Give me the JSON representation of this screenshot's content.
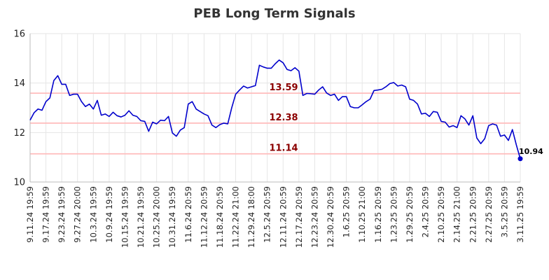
{
  "chart_data": {
    "type": "line",
    "title": "PEB Long Term Signals",
    "xlabel": "",
    "ylabel": "",
    "ylim": [
      10,
      16
    ],
    "yticks": [
      10,
      12,
      14,
      16
    ],
    "grid": true,
    "legend": "none",
    "x_tick_labels": [
      "9.11.24 19:59",
      "9.17.24 19:59",
      "9.23.24 19:59",
      "9.27.24 20:00",
      "10.3.24 19:59",
      "10.9.24 19:59",
      "10.15.24 19:59",
      "10.21.24 19:59",
      "10.25.24 20:00",
      "10.31.24 19:59",
      "11.6.24 20:59",
      "11.12.24 20:59",
      "11.18.24 20:59",
      "11.22.24 21:00",
      "11.29.24 18:00",
      "12.5.24 20:59",
      "12.11.24 20:59",
      "12.17.24 20:59",
      "12.23.24 20:59",
      "12.30.24 20:59",
      "1.6.25 20:59",
      "1.10.25 21:00",
      "1.16.25 20:59",
      "1.23.25 20:59",
      "1.29.25 20:59",
      "2.4.25 20:59",
      "2.10.25 20:59",
      "2.14.25 21:00",
      "2.21.25 20:59",
      "2.27.25 20:59",
      "3.5.25 20:59",
      "3.11.25 19:59"
    ],
    "series": [
      {
        "color": "#0000cc",
        "values": [
          12.5,
          12.8,
          12.95,
          12.9,
          13.25,
          13.4,
          14.1,
          14.3,
          13.95,
          13.95,
          13.5,
          13.55,
          13.55,
          13.25,
          13.05,
          13.15,
          12.95,
          13.3,
          12.7,
          12.75,
          12.65,
          12.82,
          12.68,
          12.63,
          12.7,
          12.88,
          12.7,
          12.65,
          12.48,
          12.45,
          12.05,
          12.42,
          12.35,
          12.5,
          12.48,
          12.65,
          11.98,
          11.85,
          12.1,
          12.2,
          13.15,
          13.25,
          12.95,
          12.85,
          12.75,
          12.68,
          12.3,
          12.2,
          12.32,
          12.38,
          12.35,
          13.0,
          13.55,
          13.72,
          13.88,
          13.8,
          13.85,
          13.9,
          14.72,
          14.65,
          14.6,
          14.6,
          14.78,
          14.93,
          14.82,
          14.55,
          14.5,
          14.62,
          14.48,
          13.5,
          13.58,
          13.57,
          13.55,
          13.72,
          13.85,
          13.6,
          13.5,
          13.55,
          13.3,
          13.45,
          13.45,
          13.05,
          13.0,
          13.0,
          13.12,
          13.25,
          13.35,
          13.7,
          13.72,
          13.75,
          13.85,
          13.98,
          14.02,
          13.88,
          13.92,
          13.85,
          13.35,
          13.3,
          13.15,
          12.75,
          12.78,
          12.65,
          12.85,
          12.82,
          12.45,
          12.42,
          12.22,
          12.28,
          12.2,
          12.68,
          12.55,
          12.3,
          12.68,
          11.78,
          11.55,
          11.75,
          12.28,
          12.35,
          12.3,
          11.85,
          11.9,
          11.68,
          12.12,
          11.5,
          10.94
        ]
      }
    ],
    "levels": [
      {
        "value": 13.59,
        "label": "13.59"
      },
      {
        "value": 12.38,
        "label": "12.38"
      },
      {
        "value": 11.14,
        "label": "11.14"
      }
    ],
    "last_value_label": "10.94",
    "colors": {
      "line": "#0000cc",
      "level_line": "#ffbcbc",
      "level_label": "#8b0000",
      "grid": "#e6e6e6",
      "axis": "#bbbbbb"
    }
  }
}
